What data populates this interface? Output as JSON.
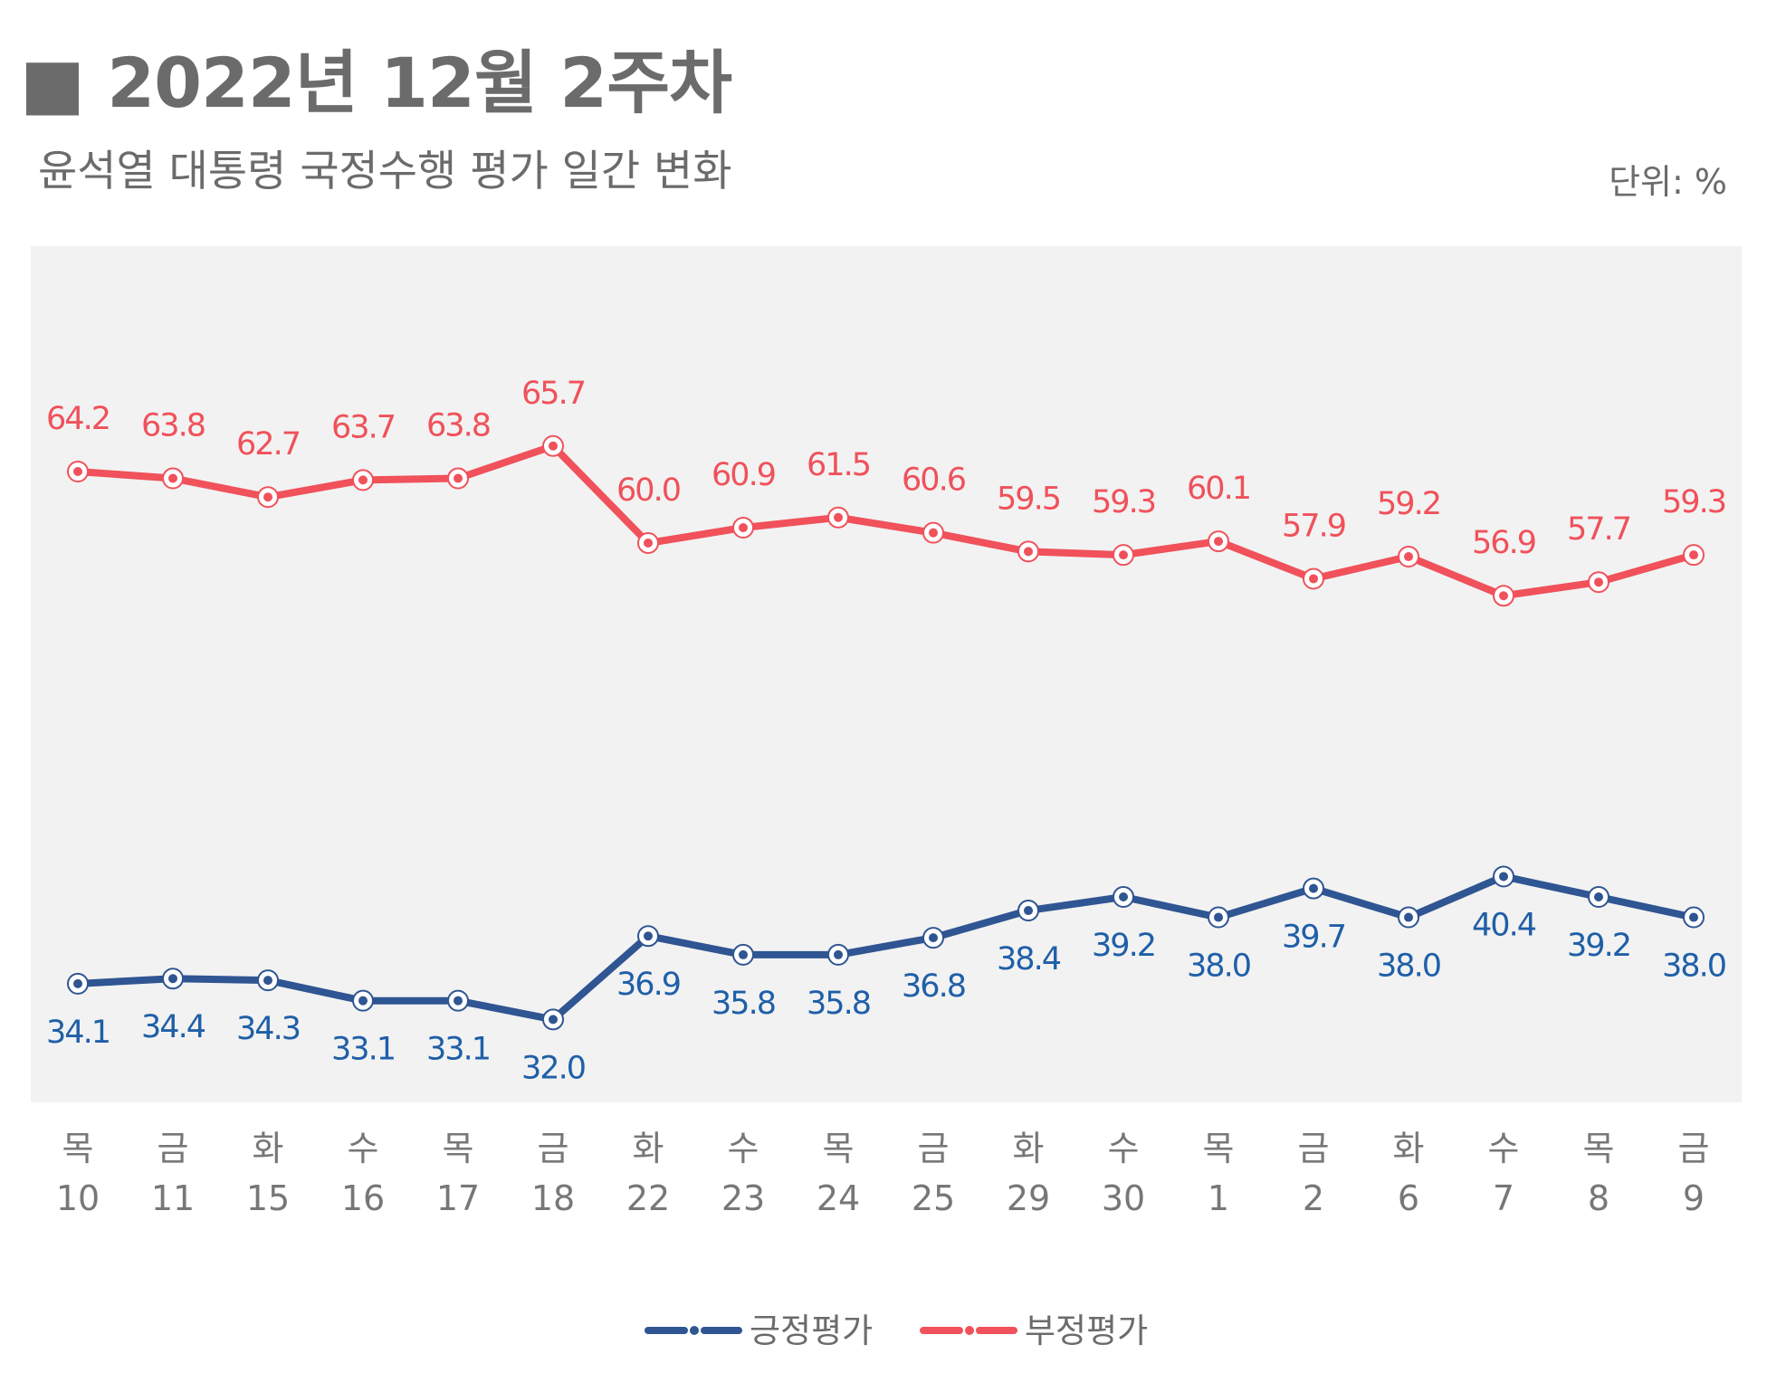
{
  "header": {
    "title": "■ 2022년 12월 2주차",
    "subtitle": "윤석열 대통령 국정수행 평가 일간 변화",
    "unit": "단위: %"
  },
  "colors": {
    "positive": "#2f5592",
    "positive_label": "#1f5fa8",
    "negative": "#f0515a",
    "plot_bg": "#f2f2f2"
  },
  "chart_data": {
    "type": "line",
    "title": "윤석열 대통령 국정수행 평가 일간 변화",
    "ylabel": "단위: %",
    "ylim": [
      20,
      75
    ],
    "grid": false,
    "legend_position": "bottom-center",
    "x": [
      {
        "day": "목",
        "date": "10"
      },
      {
        "day": "금",
        "date": "11"
      },
      {
        "day": "화",
        "date": "15"
      },
      {
        "day": "수",
        "date": "16"
      },
      {
        "day": "목",
        "date": "17"
      },
      {
        "day": "금",
        "date": "18"
      },
      {
        "day": "화",
        "date": "22"
      },
      {
        "day": "수",
        "date": "23"
      },
      {
        "day": "목",
        "date": "24"
      },
      {
        "day": "금",
        "date": "25"
      },
      {
        "day": "화",
        "date": "29"
      },
      {
        "day": "수",
        "date": "30"
      },
      {
        "day": "목",
        "date": "1"
      },
      {
        "day": "금",
        "date": "2"
      },
      {
        "day": "화",
        "date": "6"
      },
      {
        "day": "수",
        "date": "7"
      },
      {
        "day": "목",
        "date": "8"
      },
      {
        "day": "금",
        "date": "9"
      }
    ],
    "series": [
      {
        "name": "긍정평가",
        "values": [
          34.1,
          34.4,
          34.3,
          33.1,
          33.1,
          32.0,
          36.9,
          35.8,
          35.8,
          36.8,
          38.4,
          39.2,
          38.0,
          39.7,
          38.0,
          40.4,
          39.2,
          38.0
        ],
        "labels": [
          "34.1",
          "34.4",
          "34.3",
          "33.1",
          "33.1",
          "32.0",
          "36.9",
          "35.8",
          "35.8",
          "36.8",
          "38.4",
          "39.2",
          "38.0",
          "39.7",
          "38.0",
          "40.4",
          "39.2",
          "38.0"
        ]
      },
      {
        "name": "부정평가",
        "values": [
          64.2,
          63.8,
          62.7,
          63.7,
          63.8,
          65.7,
          60.0,
          60.9,
          61.5,
          60.6,
          59.5,
          59.3,
          60.1,
          57.9,
          59.2,
          56.9,
          57.7,
          59.3
        ],
        "labels": [
          "64.2",
          "63.8",
          "62.7",
          "63.7",
          "63.8",
          "65.7",
          "60.0",
          "60.9",
          "61.5",
          "60.6",
          "59.5",
          "59.3",
          "60.1",
          "57.9",
          "59.2",
          "56.9",
          "57.7",
          "59.3"
        ]
      }
    ]
  }
}
